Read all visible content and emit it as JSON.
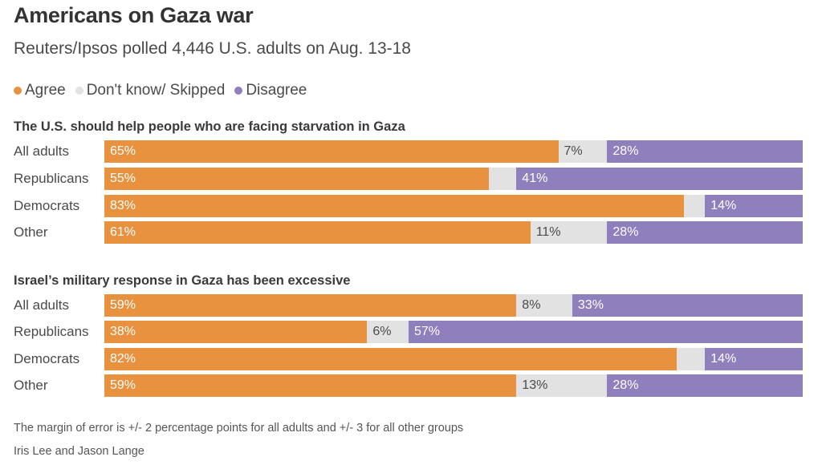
{
  "title": "Americans on Gaza war",
  "subtitle": "Reuters/Ipsos polled 4,446 U.S. adults on Aug. 13-18",
  "colors": {
    "agree": "#e8923f",
    "dont_know": "#e2e2e2",
    "disagree": "#8f7fbd"
  },
  "legend": [
    {
      "key": "agree",
      "label": "Agree"
    },
    {
      "key": "dont_know",
      "label": "Don't know/ Skipped"
    },
    {
      "key": "disagree",
      "label": "Disagree"
    }
  ],
  "chart_data": [
    {
      "type": "bar",
      "stacked": true,
      "orientation": "horizontal",
      "title": "The U.S. should help people who are facing starvation in Gaza",
      "categories": [
        "All adults",
        "Republicans",
        "Democrats",
        "Other"
      ],
      "series": [
        {
          "name": "Agree",
          "key": "agree",
          "values": [
            65,
            55,
            83,
            61
          ],
          "labels": [
            "65%",
            "55%",
            "83%",
            "61%"
          ]
        },
        {
          "name": "Don't know/ Skipped",
          "key": "dont_know",
          "values": [
            7,
            4,
            3,
            11
          ],
          "labels": [
            "7%",
            "",
            "",
            "11%"
          ]
        },
        {
          "name": "Disagree",
          "key": "disagree",
          "values": [
            28,
            41,
            14,
            28
          ],
          "labels": [
            "28%",
            "41%",
            "14%",
            "28%"
          ]
        }
      ],
      "xlim": [
        0,
        100
      ]
    },
    {
      "type": "bar",
      "stacked": true,
      "orientation": "horizontal",
      "title": "Israel’s military response in Gaza has been excessive",
      "categories": [
        "All adults",
        "Republicans",
        "Democrats",
        "Other"
      ],
      "series": [
        {
          "name": "Agree",
          "key": "agree",
          "values": [
            59,
            38,
            82,
            59
          ],
          "labels": [
            "59%",
            "38%",
            "82%",
            "59%"
          ]
        },
        {
          "name": "Don't know/ Skipped",
          "key": "dont_know",
          "values": [
            8,
            6,
            4,
            13
          ],
          "labels": [
            "8%",
            "6%",
            "",
            "13%"
          ]
        },
        {
          "name": "Disagree",
          "key": "disagree",
          "values": [
            33,
            57,
            14,
            28
          ],
          "labels": [
            "33%",
            "57%",
            "14%",
            "28%"
          ]
        }
      ],
      "xlim": [
        0,
        100
      ]
    }
  ],
  "footer": {
    "note": "The margin of error is +/- 2 percentage points for all adults and +/- 3 for all other groups",
    "credit": "Iris Lee and Jason Lange"
  }
}
